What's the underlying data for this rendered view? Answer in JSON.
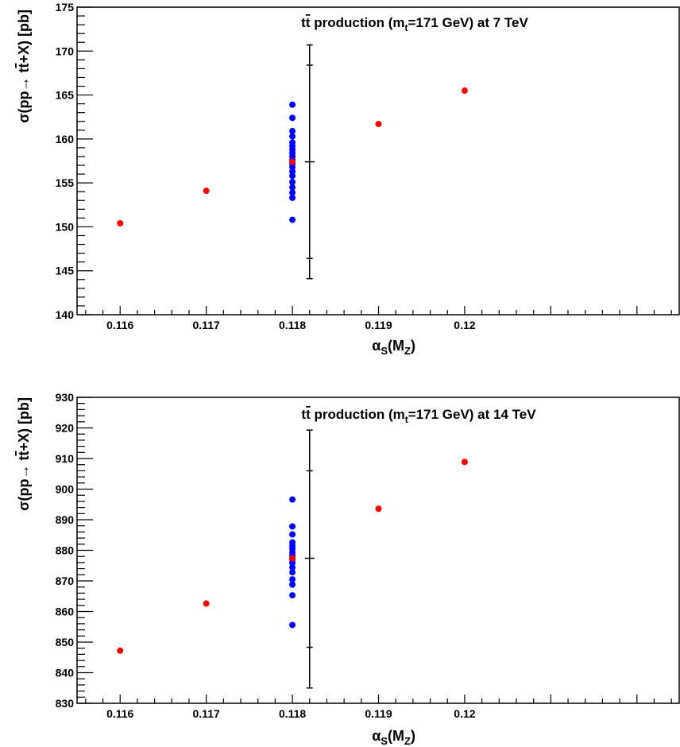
{
  "chart_data": [
    {
      "type": "scatter",
      "title": {
        "prefix": "t",
        "tbar": "t",
        "mid1": " production (m",
        "sub": "t",
        "mid2": "=171 GeV) at 7 TeV"
      },
      "xlabel": {
        "main": "α",
        "sub1": "S",
        "mid": "(M",
        "sub2": "Z",
        "end": ")"
      },
      "ylabel": {
        "pre": "σ(pp→ t",
        "tbar": "t",
        "post": "+X) [pb]"
      },
      "xlim": [
        0.1155,
        0.1225
      ],
      "ylim": [
        140,
        175
      ],
      "x_ticks": [
        0.116,
        0.117,
        0.118,
        0.119,
        0.12
      ],
      "x_tick_labels": [
        "0.116",
        "0.117",
        "0.118",
        "0.119",
        "0.12"
      ],
      "y_ticks": [
        140,
        145,
        150,
        155,
        160,
        165,
        170,
        175
      ],
      "y_tick_labels": [
        "140",
        "145",
        "150",
        "155",
        "160",
        "165",
        "170",
        "175"
      ],
      "series": [
        {
          "color": "#0000ff",
          "points": [
            [
              0.118,
              150.8
            ],
            [
              0.118,
              153.3
            ],
            [
              0.118,
              153.9
            ],
            [
              0.118,
              154.5
            ],
            [
              0.118,
              155.1
            ],
            [
              0.118,
              155.8
            ],
            [
              0.118,
              156.3
            ],
            [
              0.118,
              156.8
            ],
            [
              0.118,
              157.2
            ],
            [
              0.118,
              157.6
            ],
            [
              0.118,
              158.0
            ],
            [
              0.118,
              158.4
            ],
            [
              0.118,
              158.8
            ],
            [
              0.118,
              159.2
            ],
            [
              0.118,
              159.6
            ],
            [
              0.118,
              160.3
            ],
            [
              0.118,
              160.9
            ],
            [
              0.118,
              162.4
            ],
            [
              0.118,
              163.9
            ]
          ]
        },
        {
          "color": "#ff0000",
          "points": [
            [
              0.116,
              150.4
            ],
            [
              0.117,
              154.1
            ],
            [
              0.118,
              157.4
            ],
            [
              0.119,
              161.7
            ],
            [
              0.12,
              165.5
            ]
          ]
        }
      ],
      "error_bar": {
        "x": 0.1182,
        "center": 157.4,
        "inner": [
          146.4,
          168.4
        ],
        "outer": [
          144.1,
          170.7
        ]
      }
    },
    {
      "type": "scatter",
      "title": {
        "prefix": "t",
        "tbar": "t",
        "mid1": " production (m",
        "sub": "t",
        "mid2": "=171 GeV) at 14 TeV"
      },
      "xlabel": {
        "main": "α",
        "sub1": "S",
        "mid": "(M",
        "sub2": "Z",
        "end": ")"
      },
      "ylabel": {
        "pre": "σ(pp→ t",
        "tbar": "t",
        "post": "+X) [pb]"
      },
      "xlim": [
        0.1155,
        0.1225
      ],
      "ylim": [
        830,
        930
      ],
      "x_ticks": [
        0.116,
        0.117,
        0.118,
        0.119,
        0.12
      ],
      "x_tick_labels": [
        "0.116",
        "0.117",
        "0.118",
        "0.119",
        "0.12"
      ],
      "y_ticks": [
        830,
        840,
        850,
        860,
        870,
        880,
        890,
        900,
        910,
        920,
        930
      ],
      "y_tick_labels": [
        "830",
        "840",
        "850",
        "860",
        "870",
        "880",
        "890",
        "900",
        "910",
        "920",
        "930"
      ],
      "series": [
        {
          "color": "#0000ff",
          "points": [
            [
              0.118,
              855.6
            ],
            [
              0.118,
              865.3
            ],
            [
              0.118,
              868.8
            ],
            [
              0.118,
              870.5
            ],
            [
              0.118,
              872.8
            ],
            [
              0.118,
              874.4
            ],
            [
              0.118,
              875.9
            ],
            [
              0.118,
              877.0
            ],
            [
              0.118,
              878.2
            ],
            [
              0.118,
              879.3
            ],
            [
              0.118,
              880.5
            ],
            [
              0.118,
              881.5
            ],
            [
              0.118,
              882.6
            ],
            [
              0.118,
              885.2
            ],
            [
              0.118,
              887.8
            ],
            [
              0.118,
              896.6
            ]
          ]
        },
        {
          "color": "#ff0000",
          "points": [
            [
              0.116,
              847.2
            ],
            [
              0.117,
              862.6
            ],
            [
              0.118,
              877.4
            ],
            [
              0.119,
              893.6
            ],
            [
              0.12,
              908.9
            ]
          ]
        }
      ],
      "error_bar": {
        "x": 0.1182,
        "center": 877.4,
        "inner": [
          848.3,
          906.0
        ],
        "outer": [
          835.0,
          919.3
        ]
      }
    }
  ]
}
